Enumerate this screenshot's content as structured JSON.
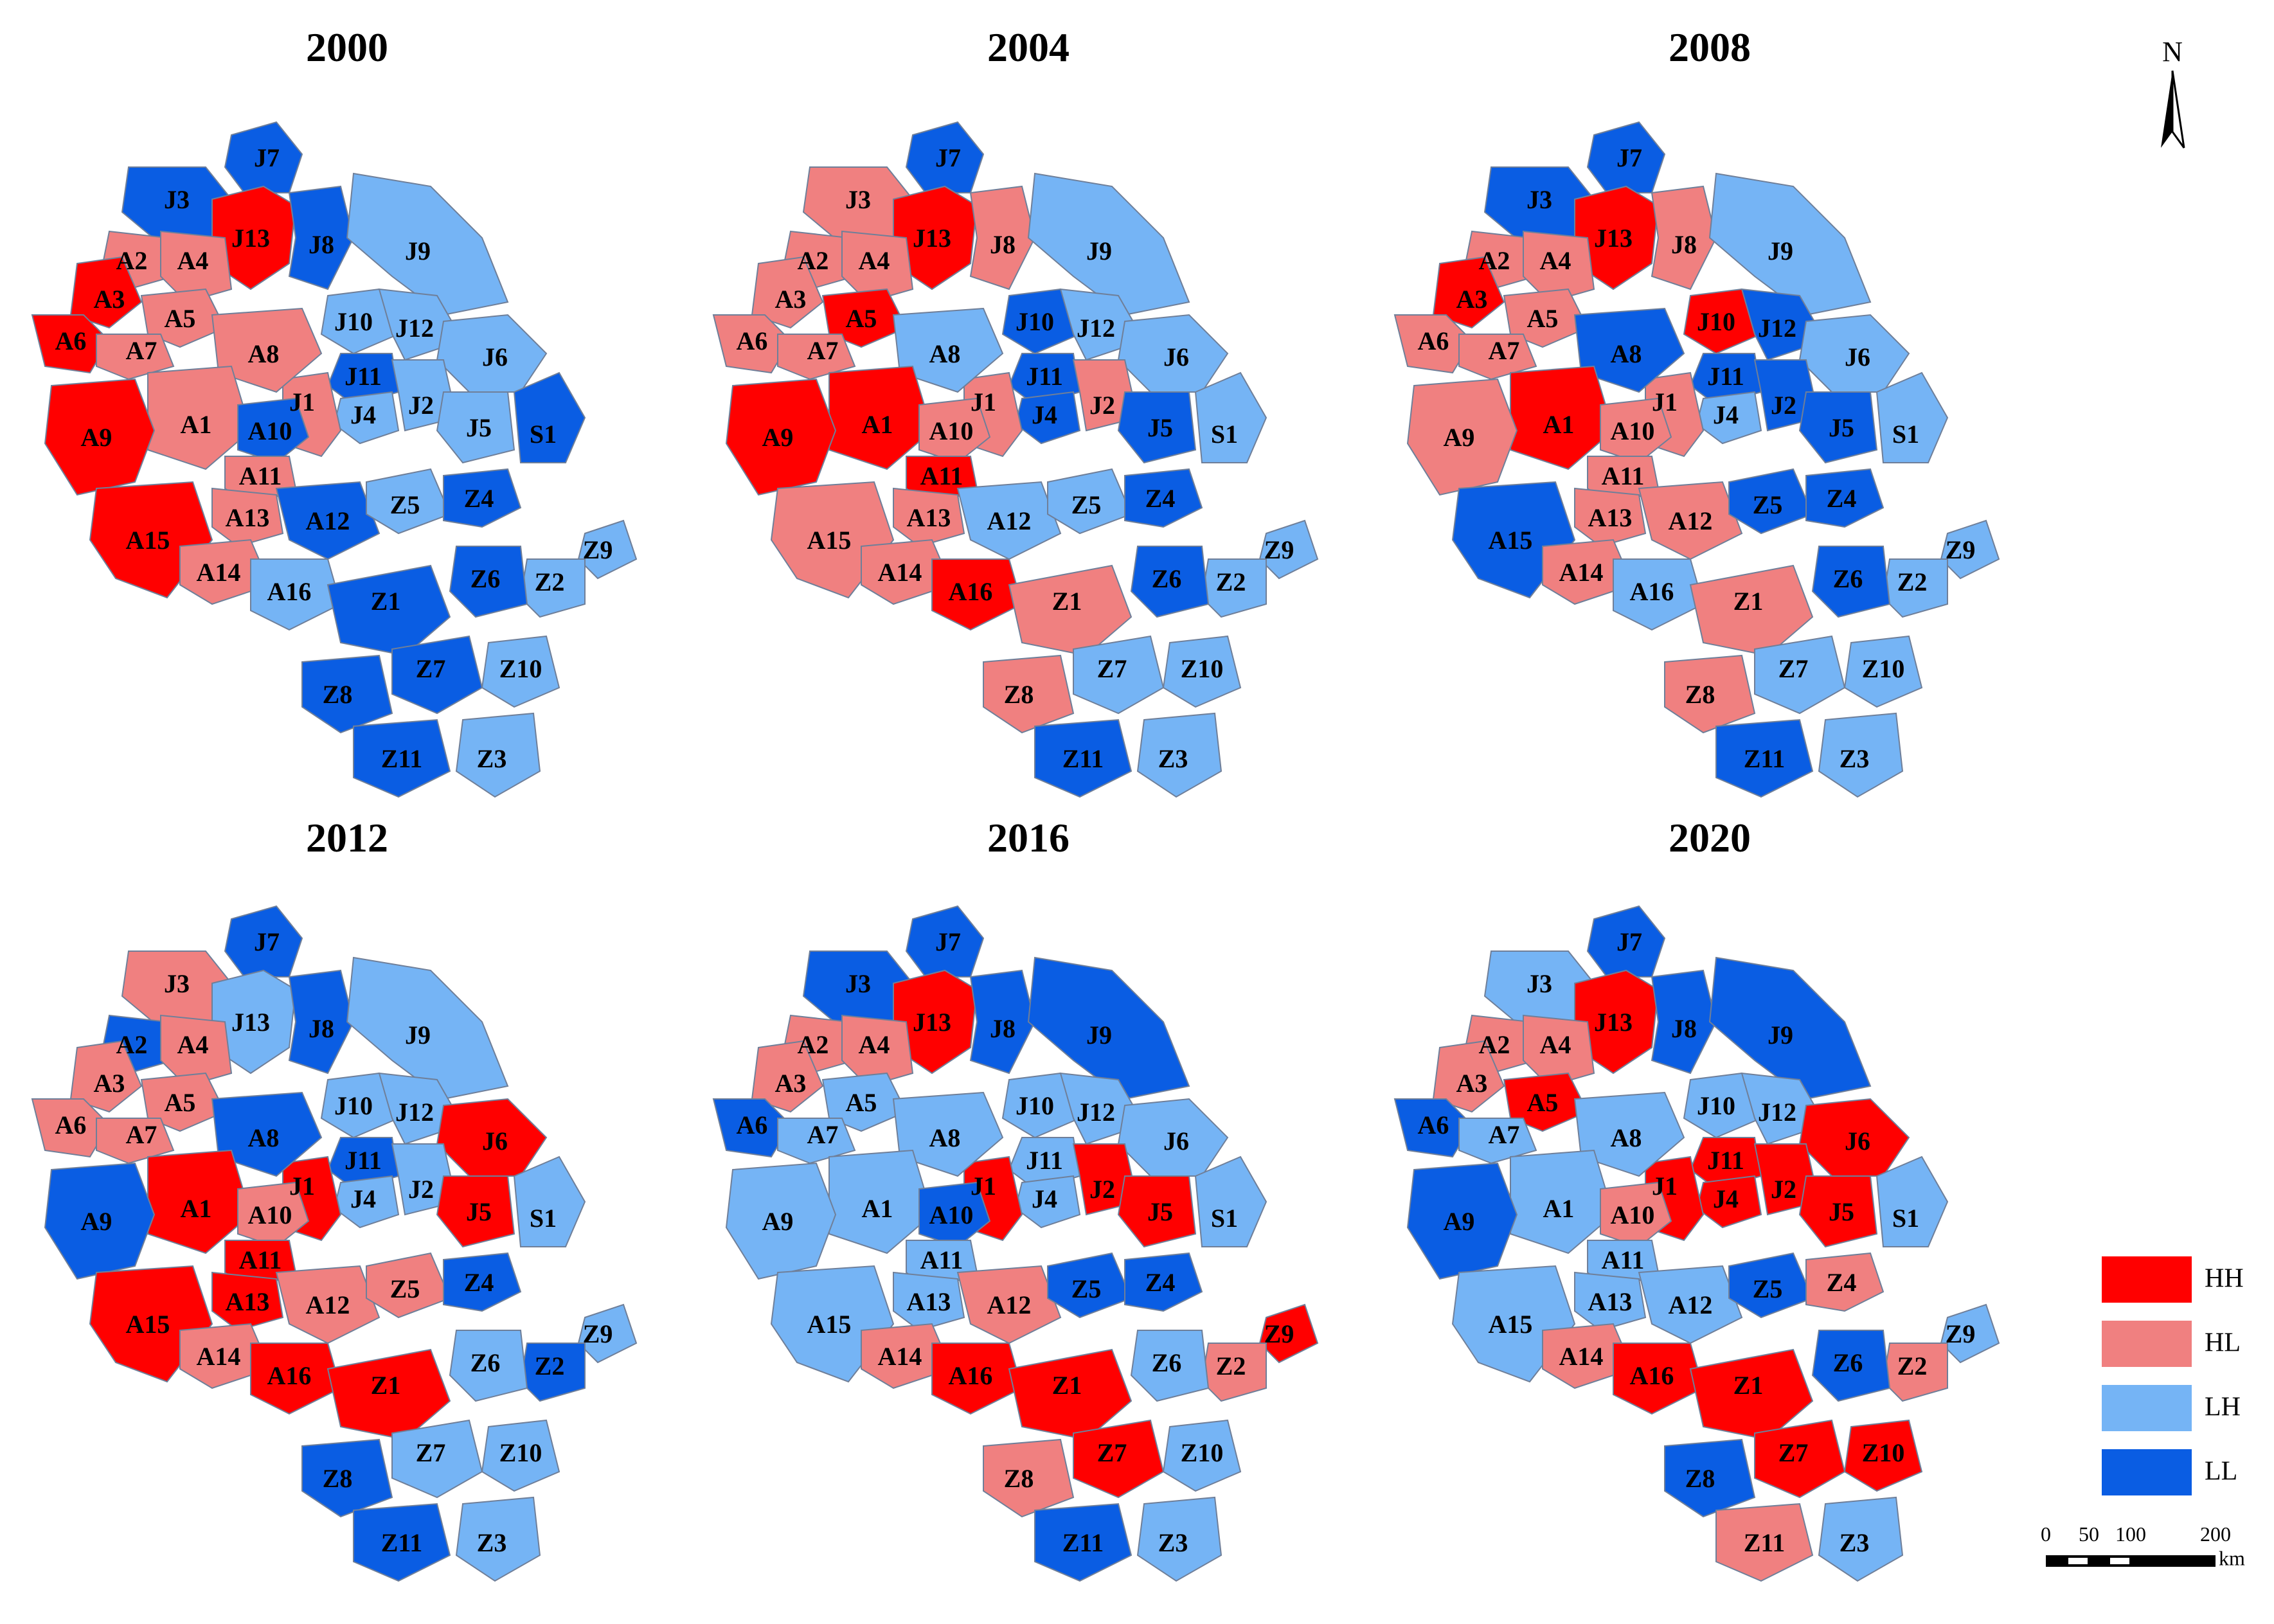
{
  "panels": [
    {
      "year": "2000",
      "classes": {
        "J3": "LL",
        "J7": "LL",
        "J13": "HH",
        "J8": "LL",
        "J9": "LH",
        "J10": "LH",
        "J12": "LH",
        "J6": "LH",
        "J11": "LL",
        "J4": "LH",
        "J2": "LH",
        "J5": "LH",
        "J1": "HL",
        "S1": "LL",
        "A2": "HL",
        "A4": "HL",
        "A3": "HH",
        "A5": "HL",
        "A6": "HH",
        "A7": "HL",
        "A8": "HL",
        "A1": "HL",
        "A9": "HH",
        "A10": "LL",
        "A11": "HL",
        "A13": "HL",
        "A12": "LL",
        "A15": "HH",
        "A14": "HL",
        "A16": "LH",
        "Z5": "LH",
        "Z4": "LL",
        "Z9": "LH",
        "Z2": "LH",
        "Z6": "LL",
        "Z1": "LL",
        "Z7": "LL",
        "Z10": "LH",
        "Z8": "LL",
        "Z11": "LL",
        "Z3": "LH"
      }
    },
    {
      "year": "2004",
      "classes": {
        "J3": "HL",
        "J7": "LL",
        "J13": "HH",
        "J8": "HL",
        "J9": "LH",
        "J10": "LL",
        "J12": "LH",
        "J6": "LH",
        "J11": "LL",
        "J4": "LL",
        "J2": "HL",
        "J5": "LL",
        "J1": "HL",
        "S1": "LH",
        "A2": "HL",
        "A4": "HL",
        "A3": "HL",
        "A5": "HH",
        "A6": "HL",
        "A7": "HL",
        "A8": "LH",
        "A1": "HH",
        "A9": "HH",
        "A10": "HL",
        "A11": "HH",
        "A13": "HL",
        "A12": "LH",
        "A15": "HL",
        "A14": "HL",
        "A16": "HH",
        "Z5": "LH",
        "Z4": "LL",
        "Z9": "LH",
        "Z2": "LH",
        "Z6": "LL",
        "Z1": "HL",
        "Z7": "LH",
        "Z10": "LH",
        "Z8": "HL",
        "Z11": "LL",
        "Z3": "LH"
      }
    },
    {
      "year": "2008",
      "classes": {
        "J3": "LL",
        "J7": "LL",
        "J13": "HH",
        "J8": "HL",
        "J9": "LH",
        "J10": "HH",
        "J12": "LL",
        "J6": "LH",
        "J11": "LL",
        "J4": "LH",
        "J2": "LL",
        "J5": "LL",
        "J1": "HL",
        "S1": "LH",
        "A2": "HL",
        "A4": "HL",
        "A3": "HH",
        "A5": "HL",
        "A6": "HL",
        "A7": "HL",
        "A8": "LL",
        "A1": "HH",
        "A9": "HL",
        "A10": "HL",
        "A11": "HL",
        "A13": "HL",
        "A12": "HL",
        "A15": "LL",
        "A14": "HL",
        "A16": "LH",
        "Z5": "LL",
        "Z4": "LL",
        "Z9": "LH",
        "Z2": "LH",
        "Z6": "LL",
        "Z1": "HL",
        "Z7": "LH",
        "Z10": "LH",
        "Z8": "HL",
        "Z11": "LL",
        "Z3": "LH"
      }
    },
    {
      "year": "2012",
      "classes": {
        "J3": "HL",
        "J7": "LL",
        "J13": "LH",
        "J8": "LL",
        "J9": "LH",
        "J10": "LH",
        "J12": "LH",
        "J6": "HH",
        "J11": "LL",
        "J4": "LH",
        "J2": "LH",
        "J5": "HH",
        "J1": "HH",
        "S1": "LH",
        "A2": "LL",
        "A4": "HL",
        "A3": "HL",
        "A5": "HL",
        "A6": "HL",
        "A7": "HL",
        "A8": "LL",
        "A1": "HH",
        "A9": "LL",
        "A10": "HL",
        "A11": "HH",
        "A13": "HH",
        "A12": "HL",
        "A15": "HH",
        "A14": "HL",
        "A16": "HH",
        "Z5": "HL",
        "Z4": "LL",
        "Z9": "LH",
        "Z2": "LL",
        "Z6": "LH",
        "Z1": "HH",
        "Z7": "LH",
        "Z10": "LH",
        "Z8": "LL",
        "Z11": "LL",
        "Z3": "LH"
      }
    },
    {
      "year": "2016",
      "classes": {
        "J3": "LL",
        "J7": "LL",
        "J13": "HH",
        "J8": "LL",
        "J9": "LL",
        "J10": "LH",
        "J12": "LH",
        "J6": "LH",
        "J11": "LH",
        "J4": "LH",
        "J2": "HH",
        "J5": "HH",
        "J1": "HH",
        "S1": "LH",
        "A2": "HL",
        "A4": "HL",
        "A3": "HL",
        "A5": "LH",
        "A6": "LL",
        "A7": "LH",
        "A8": "LH",
        "A1": "LH",
        "A9": "LH",
        "A10": "LL",
        "A11": "LH",
        "A13": "LH",
        "A12": "HL",
        "A15": "LH",
        "A14": "HL",
        "A16": "HH",
        "Z5": "LL",
        "Z4": "LL",
        "Z9": "HH",
        "Z2": "HL",
        "Z6": "LH",
        "Z1": "HH",
        "Z7": "HH",
        "Z10": "LH",
        "Z8": "HL",
        "Z11": "LL",
        "Z3": "LH"
      }
    },
    {
      "year": "2020",
      "classes": {
        "J3": "LH",
        "J7": "LL",
        "J13": "HH",
        "J8": "LL",
        "J9": "LL",
        "J10": "LH",
        "J12": "LH",
        "J6": "HH",
        "J11": "HH",
        "J4": "HH",
        "J2": "HH",
        "J5": "HH",
        "J1": "HH",
        "S1": "LH",
        "A2": "HL",
        "A4": "HL",
        "A3": "HL",
        "A5": "HH",
        "A6": "LL",
        "A7": "LH",
        "A8": "LH",
        "A1": "LH",
        "A9": "LL",
        "A10": "HL",
        "A11": "LH",
        "A13": "LH",
        "A12": "LH",
        "A15": "LH",
        "A14": "HL",
        "A16": "HH",
        "Z5": "LL",
        "Z4": "HL",
        "Z9": "LH",
        "Z2": "HL",
        "Z6": "LL",
        "Z1": "HH",
        "Z7": "HH",
        "Z10": "HH",
        "Z8": "LL",
        "Z11": "HL",
        "Z3": "LH"
      }
    }
  ],
  "legend": [
    {
      "code": "HH",
      "label": "HH",
      "color": "#ff0000"
    },
    {
      "code": "HL",
      "label": "HL",
      "color": "#f08080"
    },
    {
      "code": "LH",
      "label": "LH",
      "color": "#75b4f5"
    },
    {
      "code": "LL",
      "label": "LL",
      "color": "#0a5de3"
    }
  ],
  "north_arrow": {
    "label": "N"
  },
  "scale_bar": {
    "ticks": [
      "0",
      "50",
      "100",
      "200"
    ],
    "unit": "km"
  }
}
